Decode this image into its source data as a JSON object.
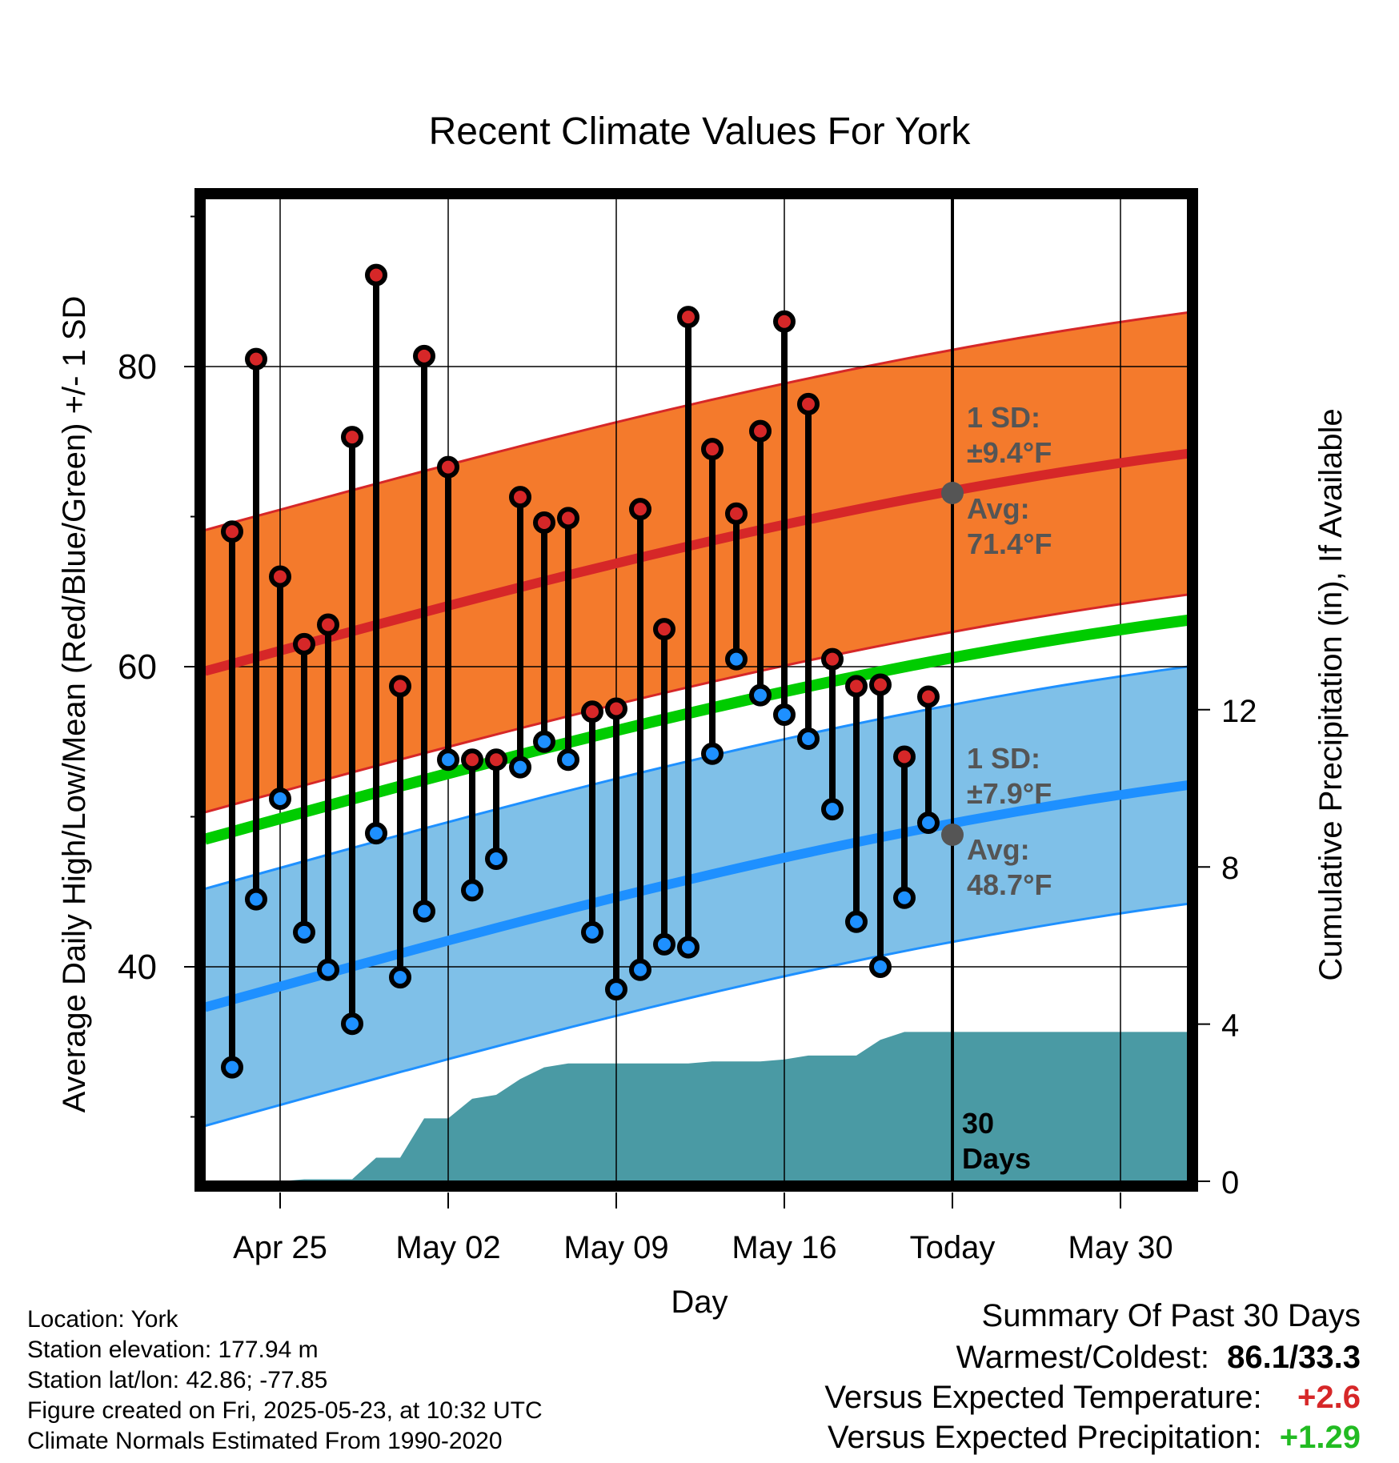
{
  "chart_data": {
    "type": "line",
    "title": "Recent Climate Values For York",
    "xlabel": "Day",
    "ylabel": "Average Daily High/Low/Mean (Red/Blue/Green) +/- 1 SD",
    "y2label": "Cumulative Precipitation (in), If Available",
    "x_ticks": [
      "Apr 25",
      "May 02",
      "May 09",
      "May 16",
      "Today",
      "May 30"
    ],
    "x_range": [
      "Apr 22",
      "Jun 01"
    ],
    "ylim": [
      30,
      95
    ],
    "y_ticks": [
      40,
      60,
      80
    ],
    "y2lim": [
      0,
      23
    ],
    "y2_ticks": [
      0,
      4,
      8,
      12
    ],
    "grid": true,
    "dates": [
      "Apr 23",
      "Apr 24",
      "Apr 25",
      "Apr 26",
      "Apr 27",
      "Apr 28",
      "Apr 29",
      "Apr 30",
      "May 01",
      "May 02",
      "May 03",
      "May 04",
      "May 05",
      "May 06",
      "May 07",
      "May 08",
      "May 09",
      "May 10",
      "May 11",
      "May 12",
      "May 13",
      "May 14",
      "May 15",
      "May 16",
      "May 17",
      "May 18",
      "May 19",
      "May 20",
      "May 21",
      "May 22"
    ],
    "daily_high": [
      69.0,
      80.5,
      66.0,
      61.5,
      62.8,
      75.3,
      86.1,
      58.7,
      80.7,
      73.3,
      53.8,
      53.8,
      71.3,
      69.6,
      69.9,
      57.0,
      57.2,
      70.5,
      62.5,
      83.3,
      74.5,
      70.2,
      75.7,
      83.0,
      77.5,
      60.5,
      58.7,
      58.8,
      54.0,
      58.0
    ],
    "daily_low": [
      33.3,
      44.5,
      51.2,
      42.3,
      39.8,
      36.2,
      48.9,
      39.3,
      43.7,
      53.8,
      45.1,
      47.2,
      53.3,
      55.0,
      53.8,
      42.3,
      38.5,
      39.8,
      41.5,
      41.3,
      54.2,
      60.5,
      58.1,
      56.8,
      55.2,
      50.5,
      43.0,
      40.0,
      44.6,
      49.6
    ],
    "normal_high_start": 59.7,
    "normal_high_end": 74.2,
    "normal_high_sd": 9.4,
    "normal_low_start": 37.3,
    "normal_low_end": 52.1,
    "normal_low_sd": 7.9,
    "normal_mean_start": 48.5,
    "normal_mean_end": 63.1,
    "cumulative_precip": [
      0,
      0,
      0,
      0.05,
      0.05,
      0.05,
      0.6,
      0.6,
      1.6,
      1.6,
      2.1,
      2.2,
      2.6,
      2.9,
      3.0,
      3.0,
      3.0,
      3.0,
      3.0,
      3.0,
      3.05,
      3.05,
      3.05,
      3.1,
      3.2,
      3.2,
      3.2,
      3.6,
      3.8,
      3.8
    ],
    "today_label": "Today",
    "high_sd_label": [
      "1 SD:",
      "±9.4°F"
    ],
    "high_avg_label": [
      "Avg:",
      "71.4°F"
    ],
    "low_sd_label": [
      "1 SD:",
      "±7.9°F"
    ],
    "low_avg_label": [
      "Avg:",
      "48.7°F"
    ],
    "days_label": [
      "30",
      "Days"
    ],
    "colors": {
      "high_band": "#f47a2c",
      "high_line": "#d62728",
      "low_band": "#7fc0e8",
      "low_line": "#1e90ff",
      "mean_line": "#00cc00",
      "precip": "#4a9aa4",
      "label": "#555555"
    }
  },
  "footer": {
    "location": "Location: York",
    "elevation": "Station elevation: 177.94 m",
    "latlon": "Station lat/lon: 42.86; -77.85",
    "created": "Figure created on Fri, 2025-05-23, at 10:32 UTC",
    "normals": "Climate Normals Estimated From 1990-2020"
  },
  "summary": {
    "title": "Summary Of Past 30 Days",
    "warm_cold_label": "Warmest/Coldest:",
    "warm_cold_value": "86.1/33.3",
    "temp_label": "Versus Expected Temperature:",
    "temp_value": "+2.6",
    "precip_label": "Versus Expected Precipitation:",
    "precip_value": "+1.29"
  }
}
